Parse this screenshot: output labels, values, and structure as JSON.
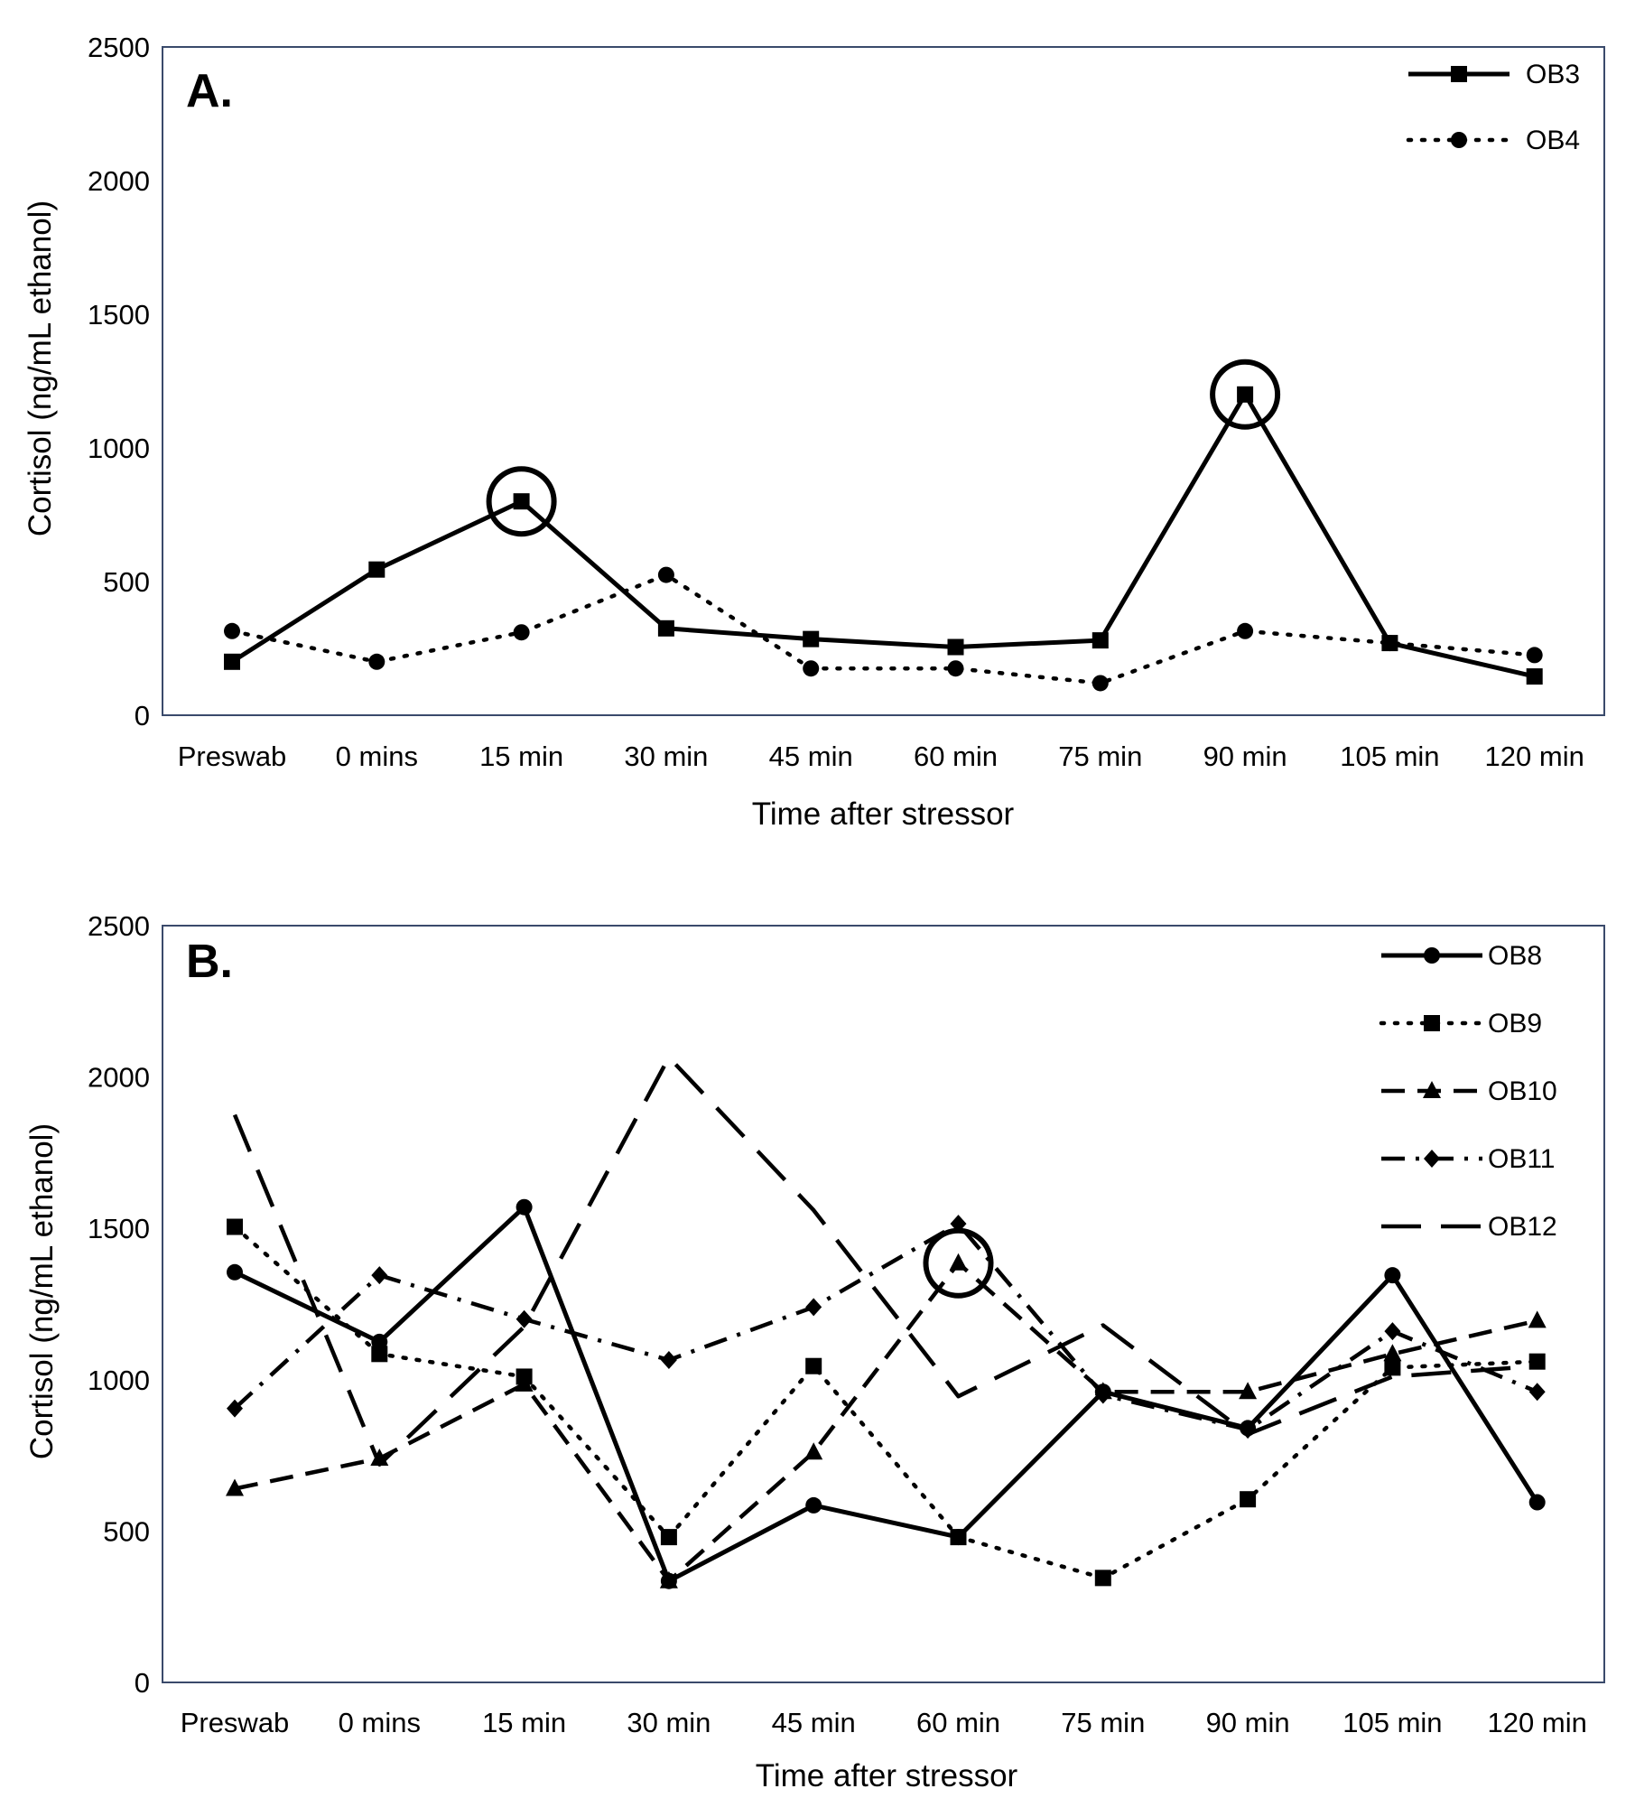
{
  "chart_data": [
    {
      "type": "line",
      "panel_label": "A.",
      "categories": [
        "Preswab",
        "0 mins",
        "15 min",
        "30 min",
        "45 min",
        "60 min",
        "75 min",
        "90 min",
        "105 min",
        "120 min"
      ],
      "xlabel": "Time after stressor",
      "ylabel": "Cortisol (ng/mL ethanol)",
      "ylim": [
        0,
        2500
      ],
      "yticks": [
        "0",
        "500",
        "1000",
        "1500",
        "2000",
        "2500"
      ],
      "legend_position": "top-right",
      "series": [
        {
          "name": "OB3",
          "style": "solid",
          "marker": "square",
          "values": [
            200,
            545,
            800,
            325,
            285,
            255,
            280,
            1200,
            270,
            145
          ]
        },
        {
          "name": "OB4",
          "style": "dotted",
          "marker": "circle",
          "values": [
            315,
            200,
            310,
            525,
            175,
            175,
            120,
            315,
            270,
            225
          ]
        }
      ],
      "annotations": [
        {
          "type": "circle",
          "series": "OB3",
          "category": "15 min"
        },
        {
          "type": "circle",
          "series": "OB3",
          "category": "90 min"
        }
      ]
    },
    {
      "type": "line",
      "panel_label": "B.",
      "categories": [
        "Preswab",
        "0 mins",
        "15 min",
        "30 min",
        "45 min",
        "60 min",
        "75 min",
        "90 min",
        "105 min",
        "120 min"
      ],
      "xlabel": "Time after stressor",
      "ylabel": "Cortisol (ng/mL ethanol)",
      "ylim": [
        0,
        2500
      ],
      "yticks": [
        "0",
        "500",
        "1000",
        "1500",
        "2000",
        "2500"
      ],
      "legend_position": "top-right",
      "series": [
        {
          "name": "OB8",
          "style": "solid",
          "marker": "circle",
          "values": [
            1355,
            1125,
            1570,
            335,
            585,
            480,
            960,
            840,
            1345,
            595
          ]
        },
        {
          "name": "OB9",
          "style": "dotted",
          "marker": "square",
          "values": [
            1505,
            1085,
            1010,
            480,
            1045,
            480,
            345,
            605,
            1040,
            1060
          ]
        },
        {
          "name": "OB10",
          "style": "dashed",
          "marker": "triangle",
          "values": [
            640,
            740,
            985,
            335,
            760,
            1385,
            960,
            960,
            1085,
            1195
          ]
        },
        {
          "name": "OB11",
          "style": "dashdot",
          "marker": "diamond",
          "values": [
            905,
            1345,
            1200,
            1065,
            1240,
            1515,
            950,
            835,
            1160,
            960
          ]
        },
        {
          "name": "OB12",
          "style": "longdash",
          "marker": "none",
          "values": [
            1875,
            720,
            1175,
            2065,
            1560,
            945,
            1180,
            820,
            1010,
            1045
          ]
        }
      ],
      "annotations": [
        {
          "type": "circle",
          "series": "OB10",
          "category": "60 min"
        }
      ]
    }
  ]
}
